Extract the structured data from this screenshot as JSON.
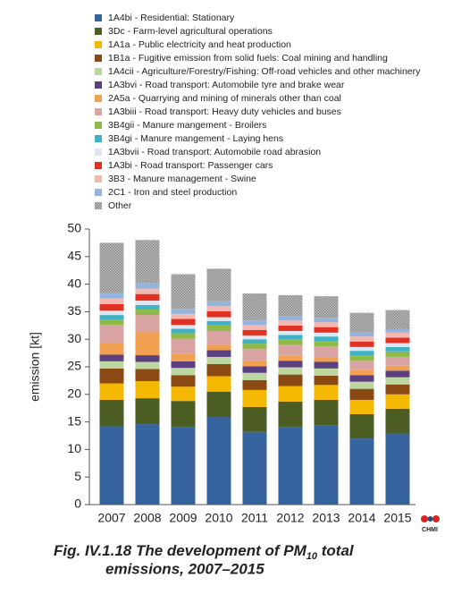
{
  "chart_data": {
    "type": "stacked-bar",
    "y_label": "emission [kt]",
    "caption_main": "Fig. IV.1.18  The development of PM",
    "caption_sub": "10",
    "caption_tail": " total",
    "caption_line2": "emissions, 2007–2015",
    "logo": "CHMI",
    "categories": [
      "2007",
      "2008",
      "2009",
      "2010",
      "2011",
      "2012",
      "2013",
      "2014",
      "2015"
    ],
    "ylim": [
      0,
      50
    ],
    "yticks": [
      0,
      5,
      10,
      15,
      20,
      25,
      30,
      35,
      40,
      45,
      50
    ],
    "series": [
      {
        "name": "1A4bi - Residential: Stationary",
        "color": "#36649e",
        "values": [
          14.2,
          14.6,
          14.1,
          15.9,
          13.2,
          14.1,
          14.4,
          12.0,
          12.9
        ]
      },
      {
        "name": "3Dc - Farm-level agricultural operations",
        "color": "#4b5d22",
        "values": [
          4.8,
          4.7,
          4.7,
          4.6,
          4.5,
          4.6,
          4.6,
          4.4,
          4.5
        ]
      },
      {
        "name": "1A1a - Public electricity and heat production",
        "color": "#f5b800",
        "values": [
          3.0,
          3.1,
          2.6,
          2.8,
          3.1,
          2.8,
          2.7,
          2.6,
          2.6
        ]
      },
      {
        "name": "1B1a - Fugitive emission from solid fuels: Coal mining and handling",
        "color": "#8b4a14",
        "values": [
          2.7,
          2.2,
          2.1,
          2.2,
          1.8,
          2.1,
          1.7,
          2.0,
          1.8
        ]
      },
      {
        "name": "1A4cii - Agriculture/Forestry/Fishing: Off-road vehicles and other machinery",
        "color": "#bcd7a0",
        "values": [
          1.3,
          1.3,
          1.3,
          1.3,
          1.3,
          1.3,
          1.3,
          1.3,
          1.3
        ]
      },
      {
        "name": "1A3bvi - Road transport: Automobile tyre and brake wear",
        "color": "#5b3f7e",
        "values": [
          1.2,
          1.2,
          1.2,
          1.2,
          1.2,
          1.2,
          1.2,
          1.2,
          1.2
        ]
      },
      {
        "name": "2A5a - Quarrying and mining of minerals other than coal",
        "color": "#f0a050",
        "values": [
          2.2,
          4.3,
          1.3,
          1.0,
          1.0,
          0.9,
          0.9,
          0.9,
          0.9
        ]
      },
      {
        "name": "1A3biii - Road transport: Heavy duty vehicles and buses",
        "color": "#d8a3a0",
        "values": [
          3.2,
          3.0,
          2.8,
          2.5,
          2.1,
          2.0,
          1.9,
          1.7,
          1.6
        ]
      },
      {
        "name": "3B4gii - Manure mangement - Broilers",
        "color": "#8fba4a",
        "values": [
          1.0,
          1.0,
          1.0,
          1.0,
          1.0,
          1.0,
          1.0,
          1.0,
          1.0
        ]
      },
      {
        "name": "3B4gi - Manure mangement - Laying hens",
        "color": "#3fb2c6",
        "values": [
          0.8,
          0.8,
          0.8,
          0.8,
          0.8,
          0.8,
          0.8,
          0.8,
          0.8
        ]
      },
      {
        "name": "1A3bvii - Road transport: Automobile road abrasion",
        "color": "#dfe5f1",
        "values": [
          0.8,
          0.8,
          0.7,
          0.7,
          0.7,
          0.7,
          0.7,
          0.7,
          0.7
        ]
      },
      {
        "name": "1A3bi - Road transport: Passenger cars",
        "color": "#e03222",
        "values": [
          1.2,
          1.2,
          1.1,
          1.1,
          1.0,
          1.0,
          1.0,
          1.0,
          1.0
        ]
      },
      {
        "name": "3B3 - Manure management - Swine",
        "color": "#f3b8b2",
        "values": [
          1.0,
          1.0,
          0.9,
          0.9,
          0.9,
          0.9,
          0.9,
          0.9,
          0.9
        ]
      },
      {
        "name": "2C1 - Iron and steel production",
        "color": "#95b4dc",
        "values": [
          1.0,
          1.0,
          0.9,
          0.9,
          0.8,
          0.8,
          0.8,
          0.7,
          0.7
        ]
      },
      {
        "name": "Other",
        "color": "#a3a3a3",
        "values": [
          9.1,
          7.8,
          6.3,
          5.9,
          4.9,
          3.8,
          3.9,
          3.6,
          3.4
        ]
      }
    ]
  }
}
